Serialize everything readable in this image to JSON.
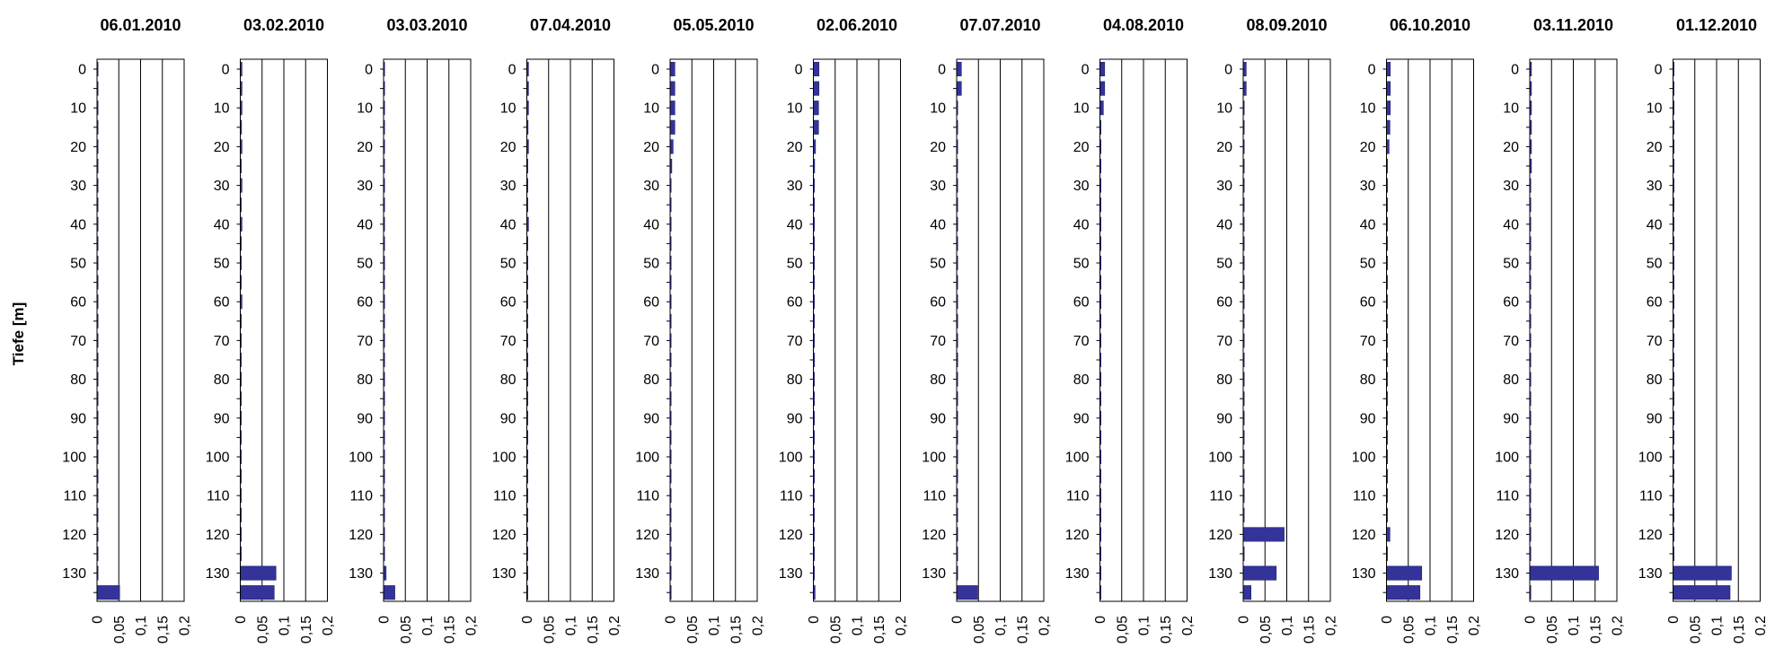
{
  "chart_data": {
    "type": "bar",
    "orientation": "horizontal",
    "ylabel": "Tiefe [m]",
    "xlabel": "",
    "xlim": [
      0,
      0.2
    ],
    "x_ticks": [
      "0",
      "0,05",
      "0,1",
      "0,15",
      "0,2"
    ],
    "ylim": [
      0,
      135
    ],
    "y_ticks": [
      0,
      10,
      20,
      30,
      40,
      50,
      60,
      70,
      80,
      90,
      100,
      110,
      120,
      130
    ],
    "y_ticks_inverted": true,
    "bar_color": "#333399",
    "depths": [
      0,
      5,
      10,
      15,
      20,
      25,
      30,
      35,
      40,
      45,
      50,
      55,
      60,
      65,
      70,
      75,
      80,
      85,
      90,
      95,
      100,
      105,
      110,
      115,
      120,
      125,
      130,
      135
    ],
    "panels": [
      {
        "title": "06.01.2010",
        "values": [
          0.002,
          0.001,
          0.001,
          0.001,
          0.001,
          0.001,
          0.001,
          0.001,
          0.001,
          0.001,
          0.001,
          0.001,
          0.001,
          0.001,
          0.001,
          0.001,
          0.001,
          0.001,
          0.001,
          0.001,
          0.001,
          0.001,
          0.001,
          0.001,
          0.001,
          0.001,
          0.001,
          0.052
        ]
      },
      {
        "title": "03.02.2010",
        "values": [
          0.004,
          0.004,
          0.004,
          0.003,
          0.004,
          0.002,
          0.004,
          0.001,
          0.004,
          0.001,
          0.002,
          0.001,
          0.004,
          0.001,
          0.001,
          0.001,
          0.001,
          0.001,
          0.001,
          0.001,
          0.001,
          0.001,
          0.001,
          0.001,
          0.001,
          0.001,
          0.082,
          0.078
        ]
      },
      {
        "title": "03.03.2010",
        "values": [
          0.002,
          0.001,
          0.001,
          0.001,
          0.001,
          0.001,
          0.001,
          0.001,
          0.001,
          0.001,
          0.001,
          0.001,
          0.001,
          0.001,
          0.001,
          0.001,
          0.001,
          0.001,
          0.001,
          0.001,
          0.001,
          0.001,
          0.001,
          0.001,
          0.001,
          0.001,
          0.006,
          0.026
        ]
      },
      {
        "title": "07.04.2010",
        "values": [
          0.004,
          0.004,
          0.004,
          0.003,
          0.004,
          0.002,
          0.002,
          0.001,
          0.004,
          0.001,
          0.001,
          0.001,
          0.001,
          0.001,
          0.001,
          0.001,
          0.001,
          0.001,
          0.001,
          0.001,
          0.001,
          0.001,
          0.001,
          0.001,
          0.001,
          0.001,
          0.001,
          0.001
        ]
      },
      {
        "title": "05.05.2010",
        "values": [
          0.011,
          0.011,
          0.011,
          0.011,
          0.007,
          0.004,
          0.001,
          0.001,
          0.001,
          0.001,
          0.001,
          0.001,
          0.001,
          0.001,
          0.001,
          0.001,
          0.001,
          0.001,
          0.001,
          0.001,
          0.001,
          0.001,
          0.001,
          0.001,
          0.001,
          0.001,
          0.001,
          0.001
        ]
      },
      {
        "title": "02.06.2010",
        "values": [
          0.013,
          0.013,
          0.012,
          0.012,
          0.005,
          0.003,
          0.001,
          0.001,
          0.001,
          0.001,
          0.001,
          0.001,
          0.001,
          0.001,
          0.001,
          0.001,
          0.001,
          0.001,
          0.001,
          0.001,
          0.001,
          0.001,
          0.001,
          0.001,
          0.001,
          0.001,
          0.001,
          0.004
        ]
      },
      {
        "title": "07.07.2010",
        "values": [
          0.011,
          0.011,
          0.001,
          0.001,
          0.001,
          0.001,
          0.001,
          0.001,
          0.001,
          0.001,
          0.001,
          0.001,
          0.001,
          0.001,
          0.001,
          0.001,
          0.001,
          0.001,
          0.001,
          0.001,
          0.001,
          0.001,
          0.001,
          0.001,
          0.001,
          0.001,
          0.001,
          0.048
        ]
      },
      {
        "title": "04.08.2010",
        "values": [
          0.011,
          0.011,
          0.008,
          0.001,
          0.001,
          0.001,
          0.001,
          0.001,
          0.001,
          0.001,
          0.001,
          0.001,
          0.001,
          0.001,
          0.001,
          0.001,
          0.001,
          0.001,
          0.001,
          0.001,
          0.001,
          0.001,
          0.001,
          0.001,
          0.001,
          0.001,
          0.001,
          0.001
        ]
      },
      {
        "title": "08.09.2010",
        "values": [
          0.007,
          0.007,
          0.001,
          0.001,
          0.001,
          0.001,
          0.001,
          0.001,
          0.001,
          0.001,
          0.001,
          0.001,
          0.001,
          0.001,
          0.001,
          0.001,
          0.001,
          0.001,
          0.001,
          0.001,
          0.001,
          0.001,
          0.001,
          0.001,
          0.094,
          0.001,
          0.076,
          0.018
        ]
      },
      {
        "title": "06.10.2010",
        "values": [
          0.009,
          0.009,
          0.009,
          0.008,
          0.006,
          0.001,
          0.001,
          0.001,
          0.001,
          0.001,
          0.001,
          0.001,
          0.001,
          0.001,
          0.001,
          0.001,
          0.001,
          0.001,
          0.001,
          0.001,
          0.001,
          0.001,
          0.001,
          0.001,
          0.008,
          0.001,
          0.081,
          0.077
        ]
      },
      {
        "title": "03.11.2010",
        "values": [
          0.004,
          0.004,
          0.004,
          0.004,
          0.004,
          0.004,
          0.001,
          0.001,
          0.001,
          0.001,
          0.001,
          0.001,
          0.001,
          0.001,
          0.001,
          0.001,
          0.001,
          0.001,
          0.001,
          0.001,
          0.001,
          0.001,
          0.001,
          0.001,
          0.001,
          0.001,
          0.158,
          0.001
        ]
      },
      {
        "title": "01.12.2010",
        "values": [
          0.001,
          0.001,
          0.001,
          0.001,
          0.001,
          0.001,
          0.001,
          0.001,
          0.001,
          0.001,
          0.001,
          0.001,
          0.001,
          0.001,
          0.001,
          0.001,
          0.001,
          0.001,
          0.001,
          0.001,
          0.001,
          0.001,
          0.001,
          0.001,
          0.001,
          0.001,
          0.134,
          0.131
        ]
      }
    ]
  }
}
